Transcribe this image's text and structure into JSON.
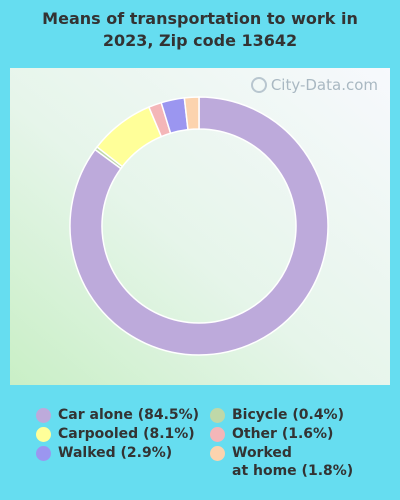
{
  "title": "Means of transportation to work in\n2023, Zip code 13642",
  "watermark": "City-Data.com",
  "chart_data": {
    "type": "pie",
    "style": "donut",
    "title": "Means of transportation to work in 2023, Zip code 13642",
    "series": [
      {
        "name": "Car alone",
        "value": 84.5,
        "label": "Car alone (84.5%)",
        "color": "#bdaadb"
      },
      {
        "name": "Bicycle",
        "value": 0.4,
        "label": "Bicycle (0.4%)",
        "color": "#bfd8a8"
      },
      {
        "name": "Carpooled",
        "value": 8.1,
        "label": "Carpooled (8.1%)",
        "color": "#ffff99"
      },
      {
        "name": "Other",
        "value": 1.6,
        "label": "Other (1.6%)",
        "color": "#f4b6b8"
      },
      {
        "name": "Walked",
        "value": 2.9,
        "label": "Walked (2.9%)",
        "color": "#9b96f0"
      },
      {
        "name": "Worked at home",
        "value": 1.8,
        "label": "Worked\nat home (1.8%)",
        "color": "#fcd3ae"
      }
    ],
    "legend_position": "bottom"
  }
}
